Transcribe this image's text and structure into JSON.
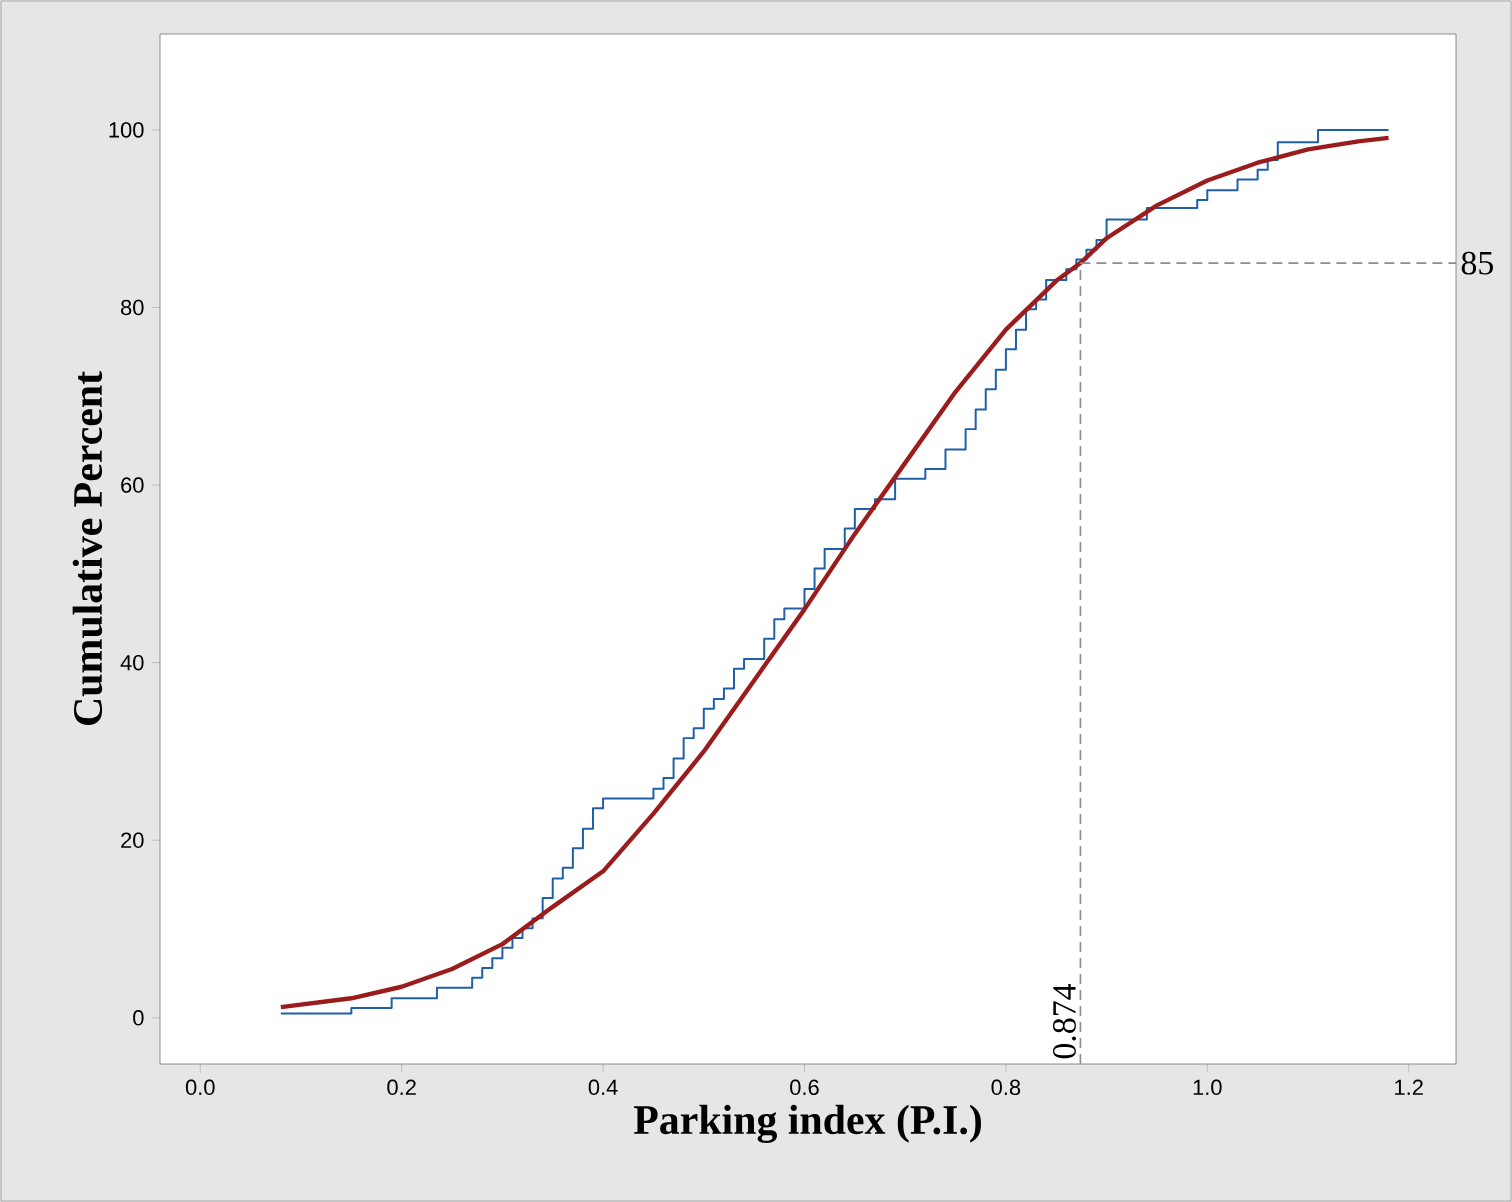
{
  "chart_data": {
    "type": "step",
    "xlabel": "Parking index (P.I.)",
    "ylabel": "Cumulative Percent",
    "xlim": [
      -0.04,
      1.247
    ],
    "ylim": [
      -5.2,
      110.8
    ],
    "xticks": [
      {
        "value": 0,
        "label": "0.0"
      },
      0.2,
      0.4,
      0.6,
      0.8,
      {
        "value": 1,
        "label": "1.0"
      },
      1.2
    ],
    "yticks": [
      0,
      20,
      40,
      60,
      80,
      100
    ],
    "grid": false,
    "series": [
      {
        "color": "#1f5fa8",
        "x": [
          0.08,
          0.15,
          0.19,
          0.235,
          0.27,
          0.28,
          0.29,
          0.3,
          0.31,
          0.32,
          0.33,
          0.34,
          0.35,
          0.36,
          0.37,
          0.38,
          0.39,
          0.4,
          0.45,
          0.46,
          0.47,
          0.48,
          0.49,
          0.5,
          0.51,
          0.52,
          0.53,
          0.54,
          0.56,
          0.57,
          0.58,
          0.6,
          0.61,
          0.62,
          0.64,
          0.65,
          0.67,
          0.69,
          0.72,
          0.74,
          0.76,
          0.77,
          0.78,
          0.79,
          0.8,
          0.81,
          0.82,
          0.83,
          0.84,
          0.86,
          0.87,
          0.88,
          0.89,
          0.9,
          0.94,
          0.99,
          1.0,
          1.03,
          1.05,
          1.06,
          1.07,
          1.11,
          1.18
        ],
        "values": [
          0.5,
          1.1,
          2.2,
          3.4,
          4.5,
          5.6,
          6.7,
          7.9,
          9.0,
          10.1,
          11.2,
          13.5,
          15.7,
          16.9,
          19.1,
          21.3,
          23.6,
          24.7,
          25.8,
          27.0,
          29.2,
          31.5,
          32.6,
          34.8,
          35.9,
          37.1,
          39.3,
          40.4,
          42.7,
          44.9,
          46.1,
          48.3,
          50.6,
          52.8,
          55.1,
          57.3,
          58.4,
          60.7,
          61.8,
          64.0,
          66.3,
          68.5,
          70.8,
          73.0,
          75.3,
          77.5,
          79.8,
          80.9,
          83.1,
          84.3,
          85.4,
          86.5,
          87.6,
          89.9,
          91.2,
          92.1,
          93.2,
          94.4,
          95.5,
          96.6,
          98.6,
          100.0,
          100.0
        ]
      },
      {
        "type": "line",
        "color": "#9b1c1c",
        "x": [
          0.08,
          0.15,
          0.2,
          0.25,
          0.3,
          0.35,
          0.4,
          0.45,
          0.5,
          0.55,
          0.6,
          0.65,
          0.7,
          0.75,
          0.8,
          0.85,
          0.874,
          0.9,
          0.95,
          1.0,
          1.05,
          1.1,
          1.15,
          1.18
        ],
        "values": [
          1.2,
          2.2,
          3.5,
          5.5,
          8.3,
          12.5,
          16.5,
          23,
          30,
          38,
          46,
          54.5,
          62.5,
          70.5,
          77.5,
          83,
          85,
          87.8,
          91.5,
          94.3,
          96.3,
          97.8,
          98.7,
          99.1
        ]
      }
    ],
    "ref_lines": [
      {
        "axis": "y",
        "value": 85,
        "label": "85",
        "color": "#8c8c8c",
        "line_style": "dashed"
      },
      {
        "axis": "x",
        "value": 0.874,
        "label": "0.874",
        "color": "#8c8c8c",
        "line_style": "dashed"
      }
    ]
  }
}
